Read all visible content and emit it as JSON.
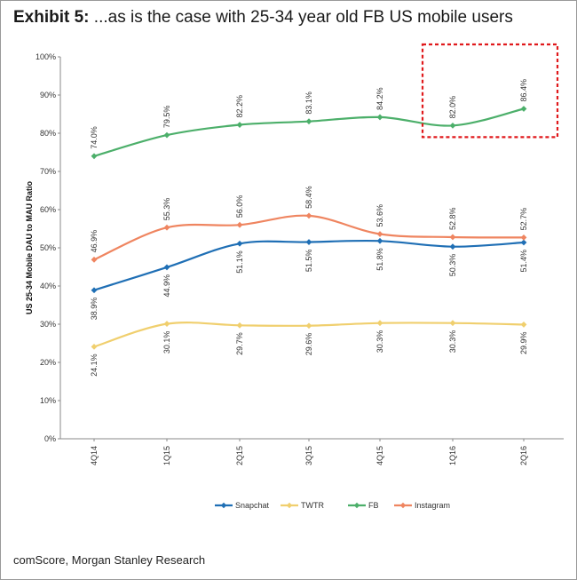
{
  "header": {
    "exhibit": "Exhibit 5:",
    "title": "...as is the case with 25-34 year old FB US mobile users"
  },
  "source": "comScore, Morgan Stanley Research",
  "chart_data": {
    "type": "line",
    "ylabel": "US 25-34 Mobile DAU to MAU Ratio",
    "ylim": [
      0,
      100
    ],
    "y_ticks": [
      "0%",
      "10%",
      "20%",
      "30%",
      "40%",
      "50%",
      "60%",
      "70%",
      "80%",
      "90%",
      "100%"
    ],
    "categories": [
      "4Q14",
      "1Q15",
      "2Q15",
      "3Q15",
      "4Q15",
      "1Q16",
      "2Q16"
    ],
    "series": [
      {
        "name": "Snapchat",
        "color": "#1f6fb5",
        "values": [
          38.9,
          44.9,
          51.1,
          51.5,
          51.8,
          50.3,
          51.4
        ],
        "labels": [
          "38.9%",
          "44.9%",
          "51.1%",
          "51.5%",
          "51.8%",
          "50.3%",
          "51.4%"
        ],
        "label_pos": "below"
      },
      {
        "name": "TWTR",
        "color": "#f0cf6e",
        "values": [
          24.1,
          30.1,
          29.7,
          29.6,
          30.3,
          30.3,
          29.9
        ],
        "labels": [
          "24.1%",
          "30.1%",
          "29.7%",
          "29.6%",
          "30.3%",
          "30.3%",
          "29.9%"
        ],
        "label_pos": "below"
      },
      {
        "name": "FB",
        "color": "#4caf6a",
        "values": [
          74.0,
          79.5,
          82.2,
          83.1,
          84.2,
          82.0,
          86.4
        ],
        "labels": [
          "74.0%",
          "79.5%",
          "82.2%",
          "83.1%",
          "84.2%",
          "82.0%",
          "86.4%"
        ],
        "label_pos": "above"
      },
      {
        "name": "Instagram",
        "color": "#ef8560",
        "values": [
          46.9,
          55.3,
          56.0,
          58.4,
          53.6,
          52.8,
          52.7
        ],
        "labels": [
          "46.9%",
          "55.3%",
          "56.0%",
          "58.4%",
          "53.6%",
          "52.8%",
          "52.7%"
        ],
        "label_pos": "above"
      }
    ],
    "legend_position": "bottom",
    "grid": false,
    "highlight": {
      "series": "FB",
      "categories": [
        "1Q16",
        "2Q16"
      ],
      "color": "#e0191c"
    }
  }
}
